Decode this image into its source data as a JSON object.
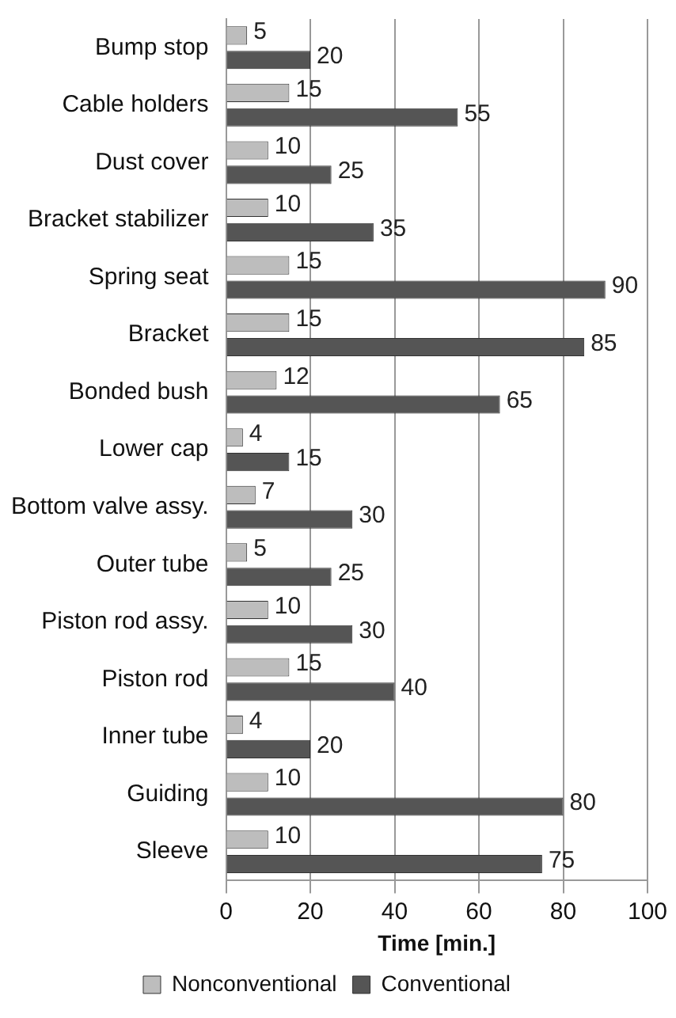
{
  "chart_data": {
    "type": "bar",
    "orientation": "horizontal",
    "xlabel": "Time [min.]",
    "categories": [
      "Bump stop",
      "Cable holders",
      "Dust cover",
      "Bracket stabilizer",
      "Spring seat",
      "Bracket",
      "Bonded bush",
      "Lower cap",
      "Bottom valve assy.",
      "Outer tube",
      "Piston rod assy.",
      "Piston rod",
      "Inner tube",
      "Guiding",
      "Sleeve"
    ],
    "series": [
      {
        "name": "Nonconventional",
        "color": "#bdbdbd",
        "values": [
          5,
          15,
          10,
          10,
          15,
          15,
          12,
          4,
          7,
          5,
          10,
          15,
          4,
          10,
          10
        ]
      },
      {
        "name": "Conventional",
        "color": "#555555",
        "values": [
          20,
          55,
          25,
          35,
          90,
          85,
          65,
          15,
          30,
          25,
          30,
          40,
          20,
          80,
          75
        ]
      }
    ],
    "xlim": [
      0,
      100
    ],
    "xticks": [
      0,
      20,
      40,
      60,
      80,
      100
    ],
    "grid": "x",
    "legend": "bottom",
    "data_labels": true
  }
}
